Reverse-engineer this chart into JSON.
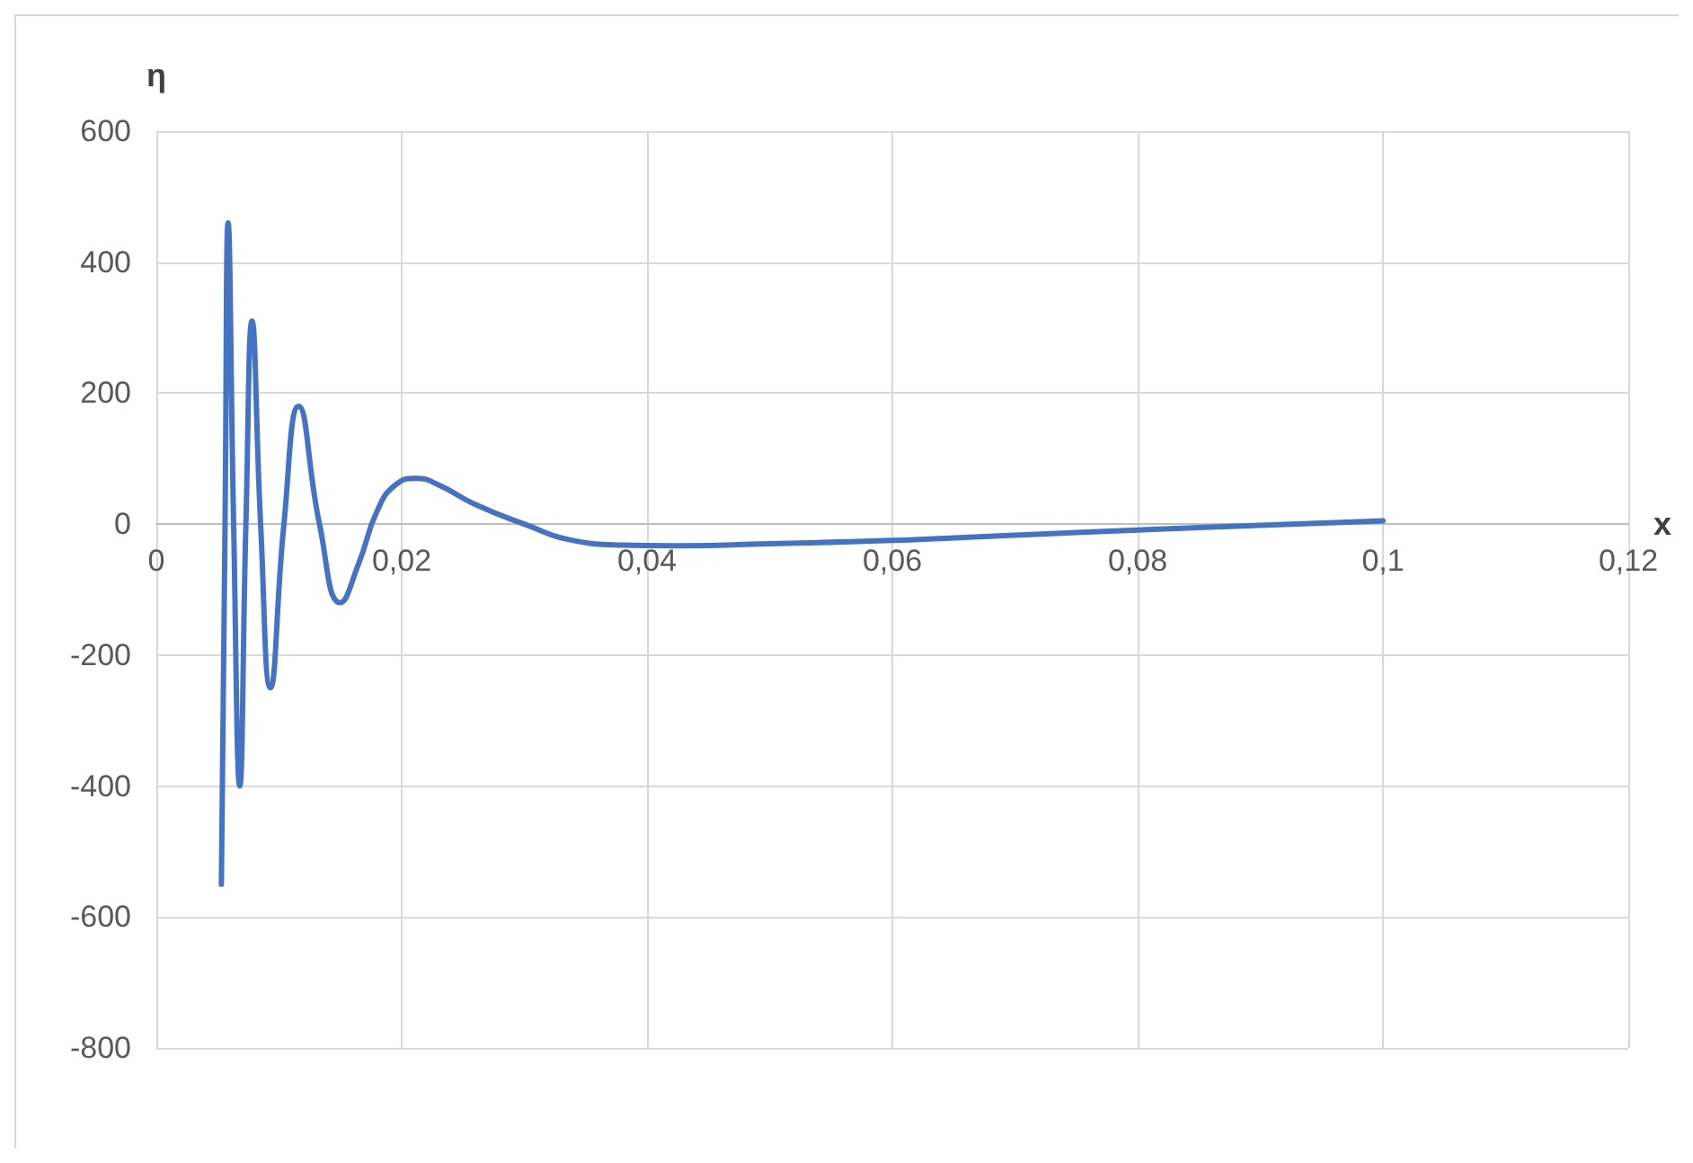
{
  "chart_data": {
    "type": "line",
    "xlabel": "x",
    "ylabel": "η",
    "x": [
      0.0053,
      0.0056,
      0.00585,
      0.0063,
      0.0068,
      0.0073,
      0.0078,
      0.0085,
      0.0093,
      0.0104,
      0.0116,
      0.0133,
      0.015,
      0.0165,
      0.018,
      0.0195,
      0.0212,
      0.023,
      0.026,
      0.03,
      0.034,
      0.038,
      0.042,
      0.05,
      0.06,
      0.07,
      0.08,
      0.09,
      0.1
    ],
    "series": [
      {
        "color": "#4472c4",
        "values": [
          -550,
          0,
          460,
          0,
          -400,
          0,
          310,
          0,
          -250,
          0,
          180,
          0,
          -120,
          -60,
          20,
          60,
          70,
          60,
          30,
          0,
          -25,
          -32,
          -33,
          -30,
          -25,
          -17,
          -9,
          -2,
          5
        ]
      }
    ],
    "xlim": [
      0,
      0.12
    ],
    "xticks": [
      0,
      {
        "value": 0.02,
        "label": "0,02"
      },
      {
        "value": 0.04,
        "label": "0,04"
      },
      {
        "value": 0.06,
        "label": "0,06"
      },
      {
        "value": 0.08,
        "label": "0,08"
      },
      {
        "value": 0.1,
        "label": "0,1"
      },
      {
        "value": 0.12,
        "label": "0,12"
      }
    ],
    "ylim": [
      -800,
      600
    ],
    "yticks": [
      -800,
      -600,
      -400,
      -200,
      0,
      200,
      400,
      600
    ],
    "grid": true,
    "marker": "none",
    "line_style": "solid"
  }
}
